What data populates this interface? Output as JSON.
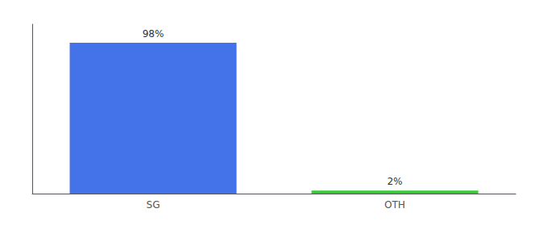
{
  "chart_data": {
    "type": "bar",
    "categories": [
      "SG",
      "OTH"
    ],
    "values": [
      98,
      2
    ],
    "value_labels": [
      "98%",
      "2%"
    ],
    "colors": [
      "#4472e8",
      "#33cc33"
    ],
    "ylim": [
      0,
      110
    ],
    "yticks": [],
    "grid": false,
    "data_labels": true,
    "tick_labels": "x"
  }
}
